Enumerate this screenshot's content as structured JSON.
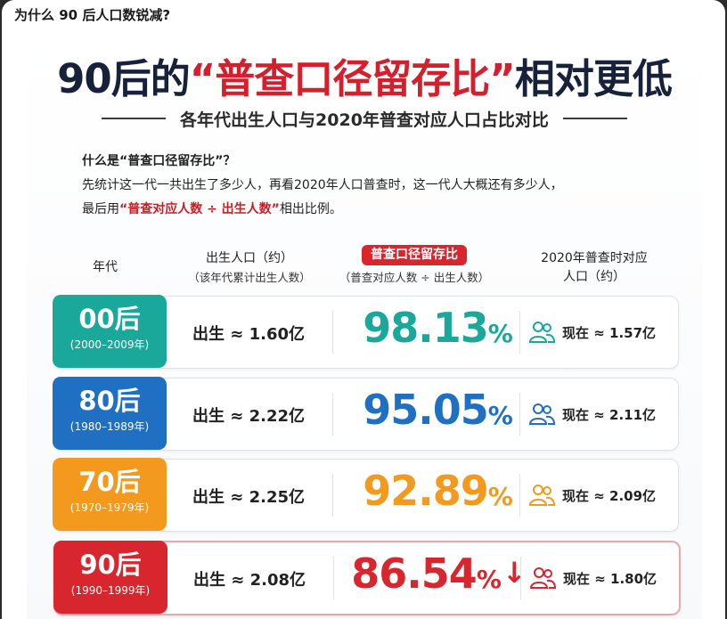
{
  "post_title": "为什么 90 后人口数锐减?",
  "headline": {
    "prefix": "90后的",
    "highlight": "“普查口径留存比”",
    "suffix": "相对更低"
  },
  "subtitle": "各年代出生人口与2020年普查对应人口占比对比",
  "explanation": {
    "question": "什么是“普查口径留存比”？",
    "line2": "先统计这一代一共出生了多少人，再看2020年人口普查时，这一代人大概还有多少人，",
    "line3_prefix": "最后用",
    "line3_highlight": "“普查对应人数 ÷ 出生人数”",
    "line3_suffix": "相出比例。"
  },
  "columns": {
    "era": "年代",
    "birth_title": "出生人口（约）",
    "birth_sub": "（该年代累计出生人数）",
    "rate_title": "普查口径留存比",
    "rate_sub": "（普查对应人数 ÷ 出生人数）",
    "census_title": "2020年普查时对应",
    "census_sub": "人口（约）"
  },
  "colors": {
    "teal": "#19a89a",
    "blue": "#1f6fc3",
    "orange": "#f39a1e",
    "red": "#d8262f"
  },
  "rows": [
    {
      "gen": "00后",
      "range": "(2000–2009年)",
      "birth": "出生 ≈ 1.60亿",
      "rate": "98.13",
      "pct": "%",
      "arrow": "",
      "now": "现在 ≈ 1.57亿",
      "icon": "people-icon"
    },
    {
      "gen": "80后",
      "range": "(1980–1989年)",
      "birth": "出生 ≈ 2.22亿",
      "rate": "95.05",
      "pct": "%",
      "arrow": "",
      "now": "现在 ≈ 2.11亿",
      "icon": "people-icon"
    },
    {
      "gen": "70后",
      "range": "(1970–1979年)",
      "birth": "出生 ≈ 2.25亿",
      "rate": "92.89",
      "pct": "%",
      "arrow": "",
      "now": "现在 ≈ 2.09亿",
      "icon": "people-icon"
    },
    {
      "gen": "90后",
      "range": "(1990–1999年)",
      "birth": "出生 ≈ 2.08亿",
      "rate": "86.54",
      "pct": "%",
      "arrow": "↓",
      "now": "现在 ≈ 1.80亿",
      "icon": "people-icon"
    }
  ]
}
